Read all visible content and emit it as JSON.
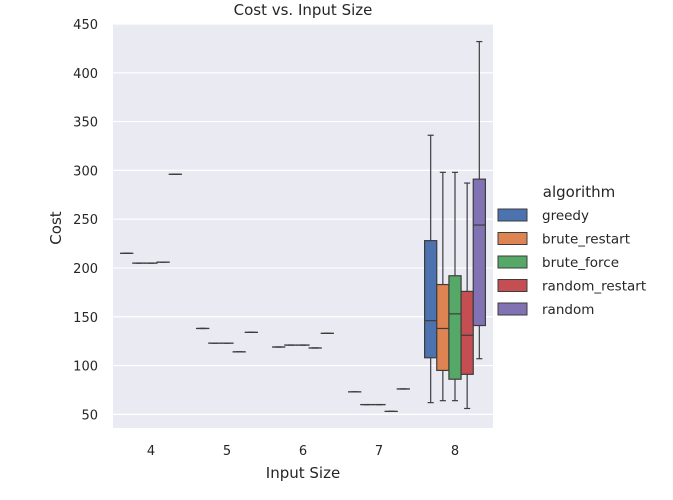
{
  "chart_data": {
    "type": "box",
    "title": "Cost vs. Input Size",
    "xlabel": "Input Size",
    "ylabel": "Cost",
    "categories": [
      "4",
      "5",
      "6",
      "7",
      "8"
    ],
    "ylim": [
      36,
      450
    ],
    "yticks": [
      50,
      100,
      150,
      200,
      250,
      300,
      350,
      400,
      450
    ],
    "grid": true,
    "legend": {
      "title": "algorithm",
      "placement": "right",
      "entries": [
        "greedy",
        "brute_restart",
        "brute_force",
        "random_restart",
        "random"
      ]
    },
    "series": [
      {
        "name": "greedy",
        "color": "#4c72b0",
        "boxes": [
          {
            "category": "4",
            "min": 215,
            "q1": 215,
            "median": 215,
            "q3": 215,
            "max": 215
          },
          {
            "category": "5",
            "min": 138,
            "q1": 138,
            "median": 138,
            "q3": 138,
            "max": 138
          },
          {
            "category": "6",
            "min": 119,
            "q1": 119,
            "median": 119,
            "q3": 119,
            "max": 119
          },
          {
            "category": "7",
            "min": 73,
            "q1": 73,
            "median": 73,
            "q3": 73,
            "max": 73
          },
          {
            "category": "8",
            "min": 62,
            "q1": 108,
            "median": 146,
            "q3": 228,
            "max": 336
          }
        ]
      },
      {
        "name": "brute_restart",
        "color": "#dd8452",
        "boxes": [
          {
            "category": "4",
            "min": 205,
            "q1": 205,
            "median": 205,
            "q3": 205,
            "max": 205
          },
          {
            "category": "5",
            "min": 123,
            "q1": 123,
            "median": 123,
            "q3": 123,
            "max": 123
          },
          {
            "category": "6",
            "min": 121,
            "q1": 121,
            "median": 121,
            "q3": 121,
            "max": 121
          },
          {
            "category": "7",
            "min": 60,
            "q1": 60,
            "median": 60,
            "q3": 60,
            "max": 60
          },
          {
            "category": "8",
            "min": 64,
            "q1": 95,
            "median": 138,
            "q3": 183,
            "max": 298
          }
        ]
      },
      {
        "name": "brute_force",
        "color": "#55a868",
        "boxes": [
          {
            "category": "4",
            "min": 205,
            "q1": 205,
            "median": 205,
            "q3": 205,
            "max": 205
          },
          {
            "category": "5",
            "min": 123,
            "q1": 123,
            "median": 123,
            "q3": 123,
            "max": 123
          },
          {
            "category": "6",
            "min": 121,
            "q1": 121,
            "median": 121,
            "q3": 121,
            "max": 121
          },
          {
            "category": "7",
            "min": 60,
            "q1": 60,
            "median": 60,
            "q3": 60,
            "max": 60
          },
          {
            "category": "8",
            "min": 64,
            "q1": 86,
            "median": 153,
            "q3": 192,
            "max": 298
          }
        ]
      },
      {
        "name": "random_restart",
        "color": "#c44e52",
        "boxes": [
          {
            "category": "4",
            "min": 206,
            "q1": 206,
            "median": 206,
            "q3": 206,
            "max": 206
          },
          {
            "category": "5",
            "min": 114,
            "q1": 114,
            "median": 114,
            "q3": 114,
            "max": 114
          },
          {
            "category": "6",
            "min": 118,
            "q1": 118,
            "median": 118,
            "q3": 118,
            "max": 118
          },
          {
            "category": "7",
            "min": 53,
            "q1": 53,
            "median": 53,
            "q3": 53,
            "max": 53
          },
          {
            "category": "8",
            "min": 56,
            "q1": 91,
            "median": 131,
            "q3": 176,
            "max": 287
          }
        ]
      },
      {
        "name": "random",
        "color": "#8172b3",
        "boxes": [
          {
            "category": "4",
            "min": 296,
            "q1": 296,
            "median": 296,
            "q3": 296,
            "max": 296
          },
          {
            "category": "5",
            "min": 134,
            "q1": 134,
            "median": 134,
            "q3": 134,
            "max": 134
          },
          {
            "category": "6",
            "min": 133,
            "q1": 133,
            "median": 133,
            "q3": 133,
            "max": 133
          },
          {
            "category": "7",
            "min": 76,
            "q1": 76,
            "median": 76,
            "q3": 76,
            "max": 76
          },
          {
            "category": "8",
            "min": 107,
            "q1": 141,
            "median": 244,
            "q3": 291,
            "max": 432
          }
        ]
      }
    ]
  }
}
